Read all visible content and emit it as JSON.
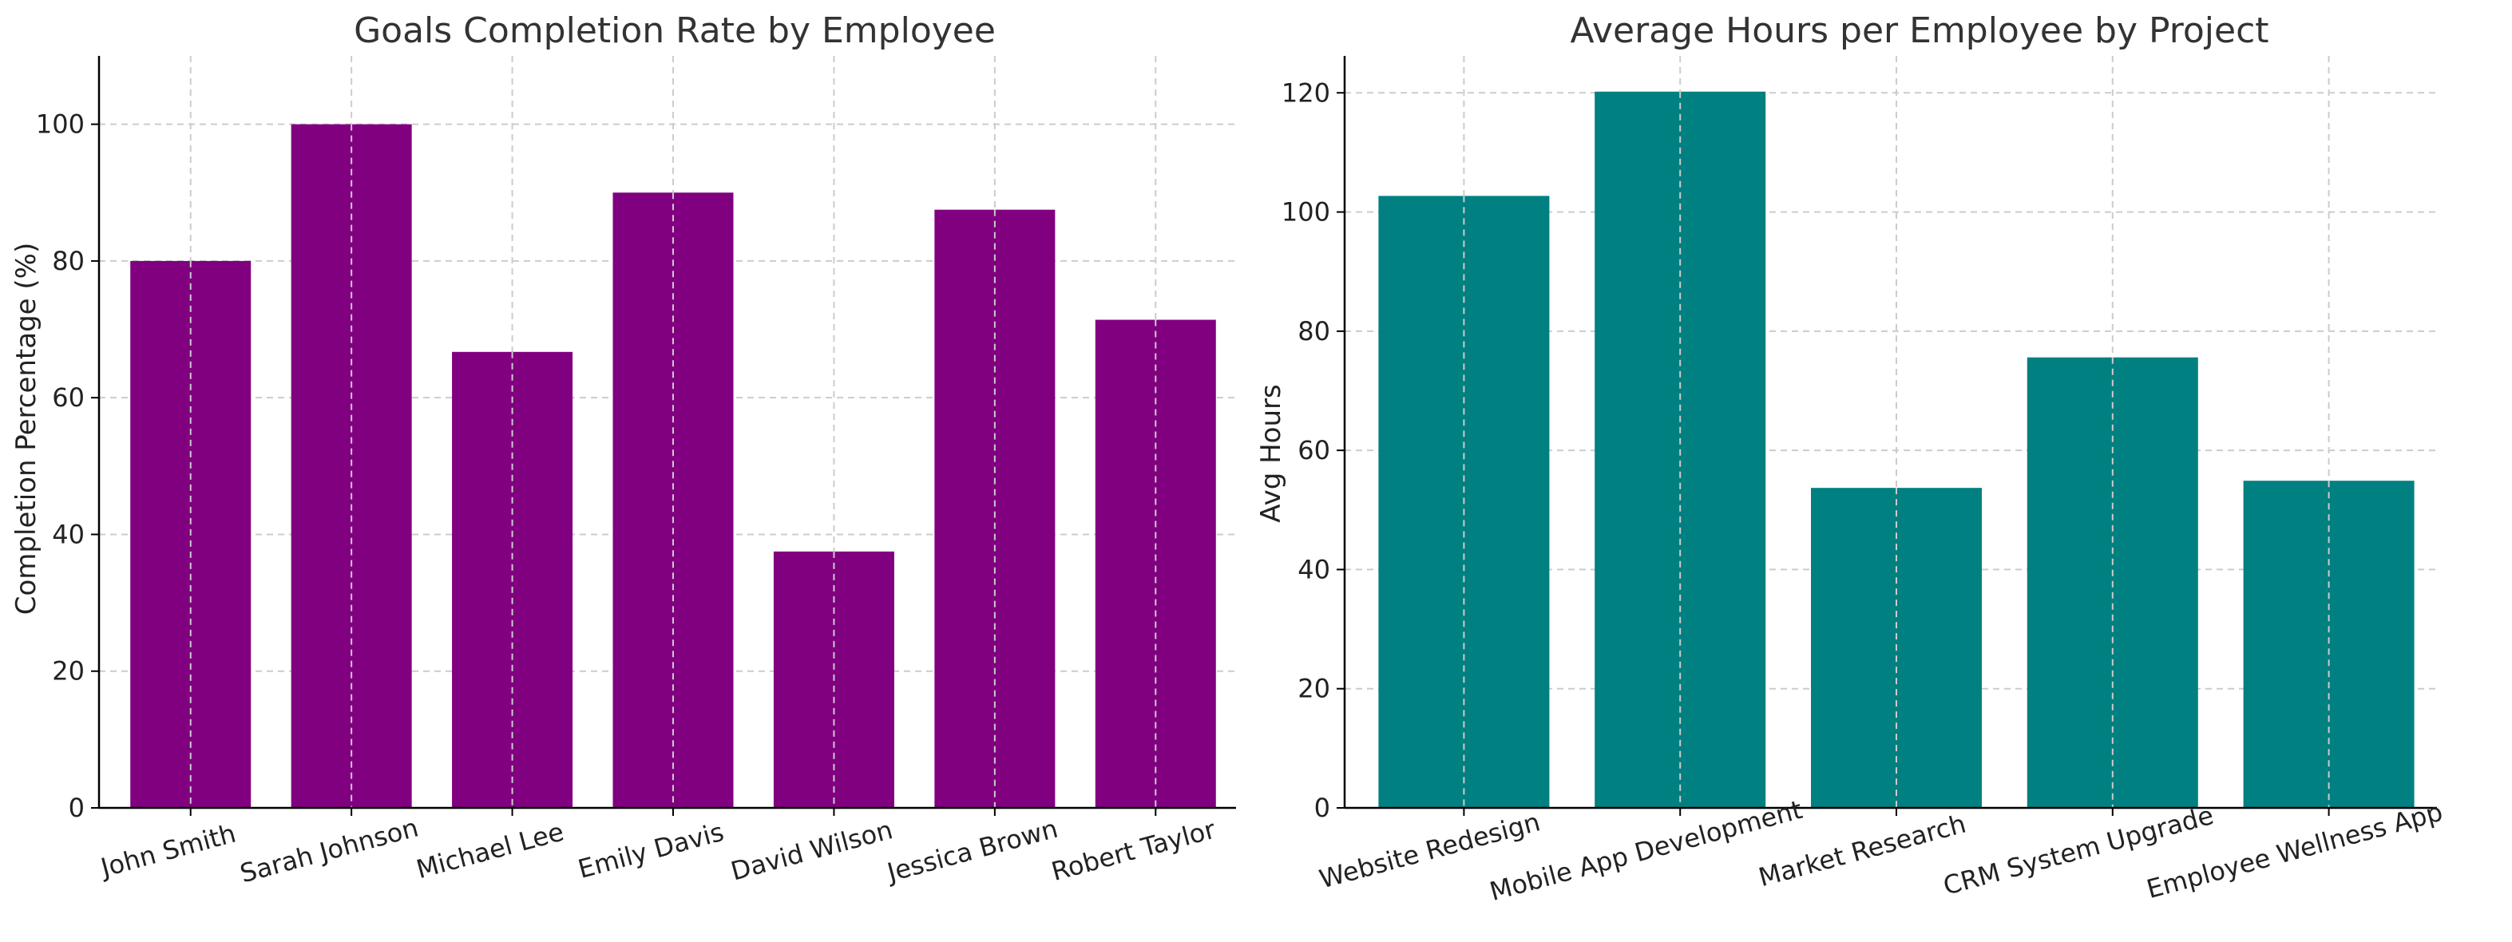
{
  "chart_data": [
    {
      "type": "bar",
      "title": "Goals Completion Rate by Employee",
      "xlabel": "",
      "ylabel": "Completion Percentage (%)",
      "categories": [
        "John Smith",
        "Sarah Johnson",
        "Michael Lee",
        "Emily Davis",
        "David Wilson",
        "Jessica Brown",
        "Robert Taylor"
      ],
      "values": [
        80,
        100,
        66.7,
        90,
        37.5,
        87.5,
        71.4
      ],
      "ylim": [
        0,
        110
      ],
      "yticks": [
        0,
        20,
        40,
        60,
        80,
        100
      ],
      "grid": true,
      "bar_color": "#800080"
    },
    {
      "type": "bar",
      "title": "Average Hours per Employee by Project",
      "xlabel": "",
      "ylabel": "Avg Hours",
      "categories": [
        "Website Redesign",
        "Mobile App Development",
        "Market Research",
        "CRM System Upgrade",
        "Employee Wellness App"
      ],
      "values": [
        102.7,
        120.2,
        53.7,
        75.6,
        54.9
      ],
      "ylim": [
        0,
        126.2
      ],
      "yticks": [
        0,
        20,
        40,
        60,
        80,
        100,
        120
      ],
      "grid": true,
      "bar_color": "#008080"
    }
  ]
}
